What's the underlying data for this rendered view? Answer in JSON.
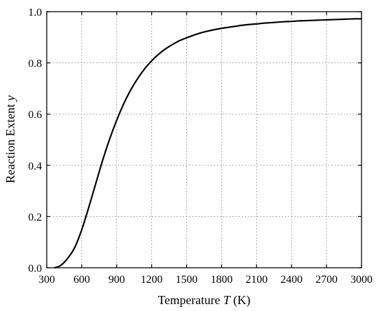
{
  "chart_data": {
    "type": "line",
    "title": "",
    "xlabel_prefix": "Temperature ",
    "xlabel_symbol": "T",
    "xlabel_suffix": " (K)",
    "ylabel_prefix": "Reaction Extent ",
    "ylabel_symbol": "y",
    "xlim": [
      300,
      3000
    ],
    "ylim": [
      0,
      1
    ],
    "xticks": [
      300,
      600,
      900,
      1200,
      1500,
      1800,
      2100,
      2400,
      2700,
      3000
    ],
    "xtick_labels": [
      "300",
      "600",
      "900",
      "1200",
      "1500",
      "1800",
      "2100",
      "2400",
      "2700",
      "3000"
    ],
    "yticks": [
      0,
      0.2,
      0.4,
      0.6,
      0.8,
      1.0
    ],
    "ytick_labels": [
      "0.0",
      "0.2",
      "0.4",
      "0.6",
      "0.8",
      "1.0"
    ],
    "grid": true,
    "series": [
      {
        "color": "#000000",
        "x": [
          368,
          420,
          480,
          540,
          600,
          660,
          720,
          780,
          840,
          900,
          960,
          1020,
          1080,
          1140,
          1200,
          1260,
          1320,
          1380,
          1440,
          1500,
          1560,
          1620,
          1680,
          1740,
          1800,
          1860,
          1920,
          1980,
          2040,
          2100,
          2160,
          2220,
          2280,
          2340,
          2400,
          2460,
          2520,
          2580,
          2640,
          2700,
          2760,
          2820,
          2880,
          2940,
          3000
        ],
        "y": [
          0.0,
          0.009,
          0.037,
          0.079,
          0.148,
          0.235,
          0.328,
          0.42,
          0.503,
          0.576,
          0.64,
          0.694,
          0.739,
          0.777,
          0.808,
          0.834,
          0.855,
          0.872,
          0.887,
          0.898,
          0.908,
          0.917,
          0.924,
          0.93,
          0.935,
          0.939,
          0.943,
          0.947,
          0.95,
          0.952,
          0.955,
          0.957,
          0.959,
          0.961,
          0.962,
          0.964,
          0.965,
          0.966,
          0.967,
          0.968,
          0.969,
          0.97,
          0.971,
          0.972,
          0.972
        ]
      }
    ]
  }
}
